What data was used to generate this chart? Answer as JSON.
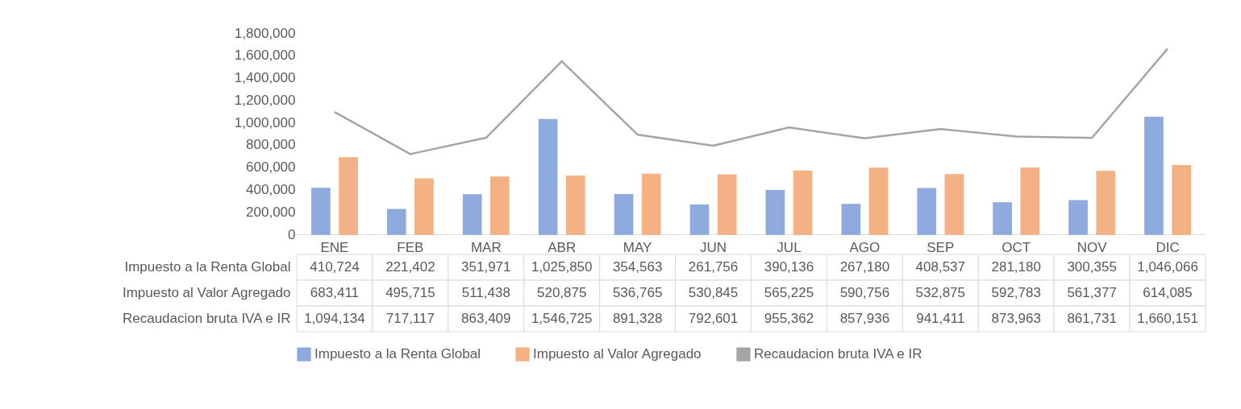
{
  "chart_data": {
    "type": "bar",
    "categories": [
      "ENE",
      "FEB",
      "MAR",
      "ABR",
      "MAY",
      "JUN",
      "JUL",
      "AGO",
      "SEP",
      "OCT",
      "NOV",
      "DIC"
    ],
    "series": [
      {
        "name": "Impuesto a la Renta Global",
        "color": "#8faadc",
        "values": [
          410724,
          221402,
          351971,
          1025850,
          354563,
          261756,
          390136,
          267180,
          408537,
          281180,
          300355,
          1046066
        ],
        "value_labels": [
          "410,724",
          "221,402",
          "351,971",
          "1,025,850",
          "354,563",
          "261,756",
          "390,136",
          "267,180",
          "408,537",
          "281,180",
          "300,355",
          "1,046,066"
        ]
      },
      {
        "name": "Impuesto al Valor Agregado",
        "color": "#f4b183",
        "values": [
          683411,
          495715,
          511438,
          520875,
          536765,
          530845,
          565225,
          590756,
          532875,
          592783,
          561377,
          614085
        ],
        "value_labels": [
          "683,411",
          "495,715",
          "511,438",
          "520,875",
          "536,765",
          "530,845",
          "565,225",
          "590,756",
          "532,875",
          "592,783",
          "561,377",
          "614,085"
        ]
      },
      {
        "name": "Recaudacion bruta IVA e IR",
        "type": "line",
        "color": "#a5a5a5",
        "values": [
          1094134,
          717117,
          863409,
          1546725,
          891328,
          792601,
          955362,
          857936,
          941411,
          873963,
          861731,
          1660151
        ],
        "value_labels": [
          "1,094,134",
          "717,117",
          "863,409",
          "1,546,725",
          "891,328",
          "792,601",
          "955,362",
          "857,936",
          "941,411",
          "873,963",
          "861,731",
          "1,660,151"
        ]
      }
    ],
    "ylim": [
      0,
      1800000
    ],
    "yticks": [
      0,
      {
        "value": 200000,
        "label": "200,000"
      },
      {
        "value": 400000,
        "label": "400,000"
      },
      {
        "value": 600000,
        "label": "600,000"
      },
      {
        "value": 800000,
        "label": "800,000"
      },
      {
        "value": 1000000,
        "label": "1,000,000"
      },
      {
        "value": 1200000,
        "label": "1,200,000"
      },
      {
        "value": 1400000,
        "label": "1,400,000"
      },
      {
        "value": 1600000,
        "label": "1,600,000"
      },
      {
        "value": 1800000,
        "label": "1,800,000"
      }
    ],
    "legend": "bottom"
  }
}
